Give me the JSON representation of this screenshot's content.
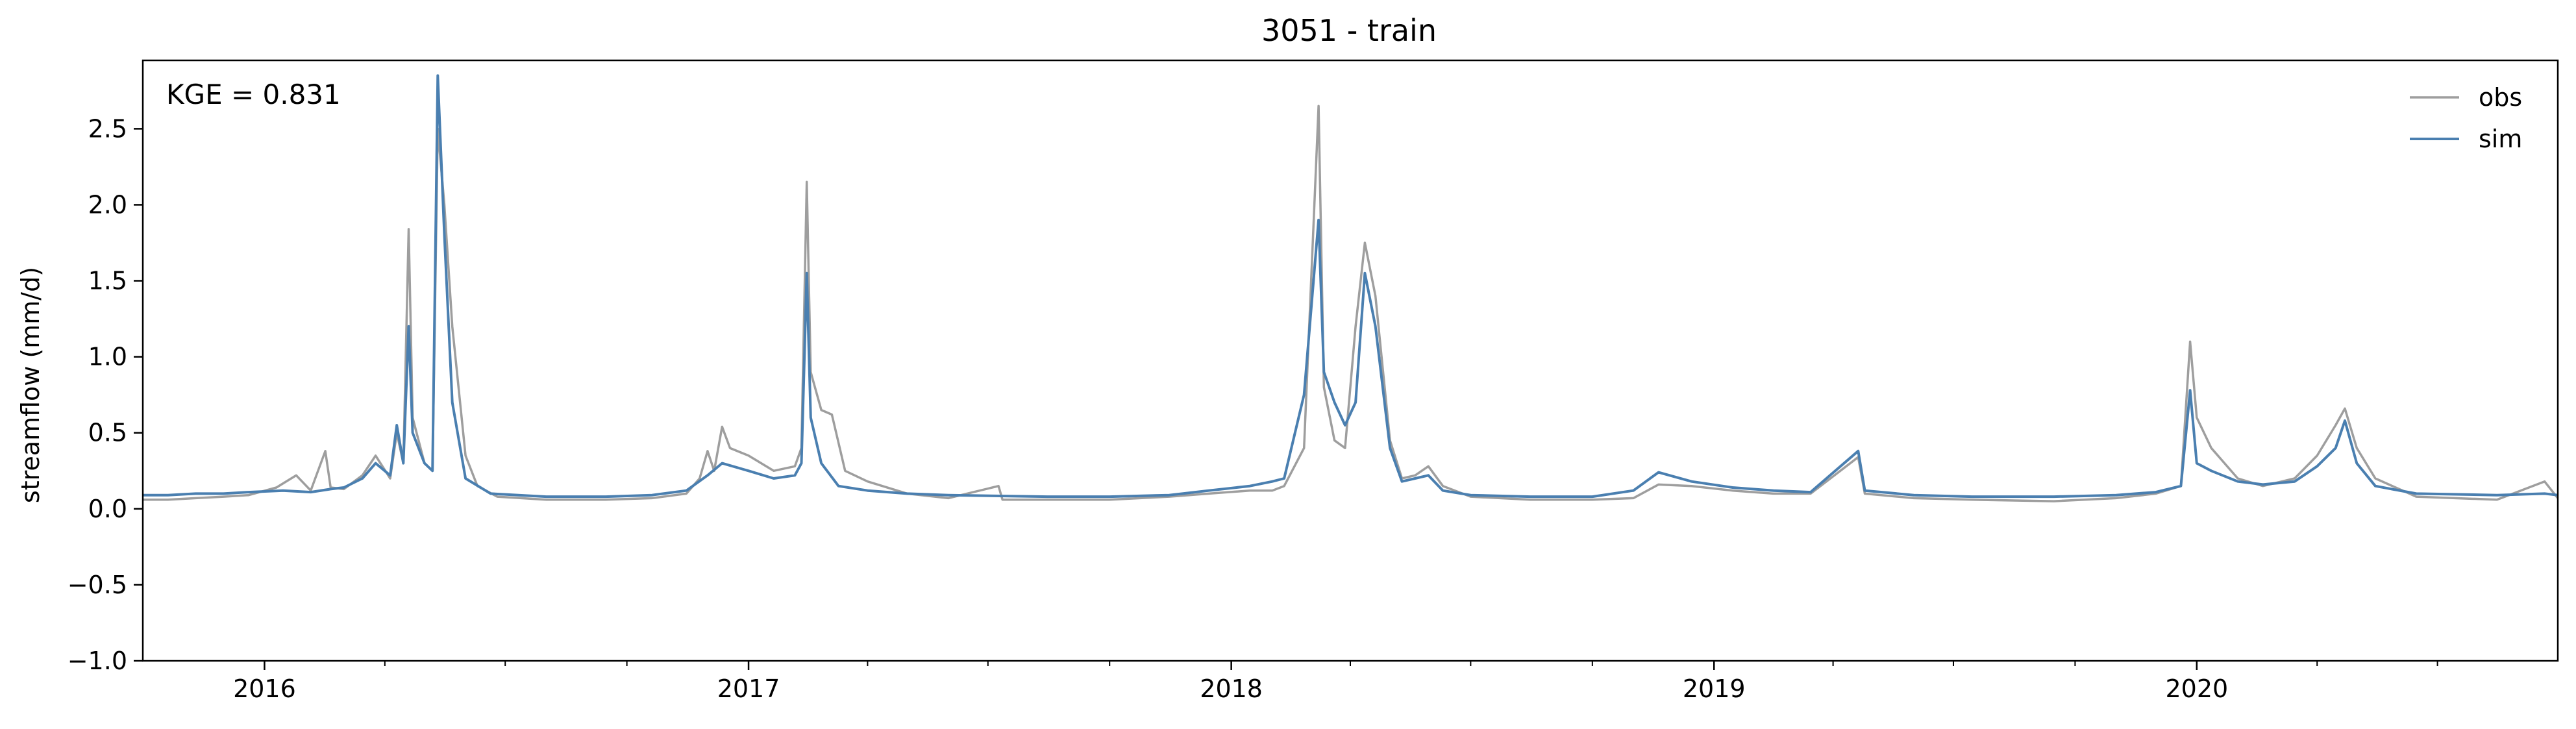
{
  "chart_data": {
    "type": "line",
    "title": "3051 - train",
    "xlabel": "",
    "ylabel": "streamflow (mm/d)",
    "annotation": "KGE = 0.831",
    "x_range": [
      "2015-10-01",
      "2020-09-30"
    ],
    "ylim": [
      -1.0,
      2.95
    ],
    "y_ticks": [
      -1.0,
      -0.5,
      0.0,
      0.5,
      1.0,
      1.5,
      2.0,
      2.5
    ],
    "y_tick_labels": [
      "−1.0",
      "−0.5",
      "0.0",
      "0.5",
      "1.0",
      "1.5",
      "2.0",
      "2.5"
    ],
    "x_tick_labels": [
      {
        "date": "2016-01-01",
        "label": "2016"
      },
      {
        "date": "2017-01-01",
        "label": "2017"
      },
      {
        "date": "2018-01-01",
        "label": "2018"
      },
      {
        "date": "2019-01-01",
        "label": "2019"
      },
      {
        "date": "2020-01-01",
        "label": "2020"
      }
    ],
    "grid": false,
    "legend_position": "top-right",
    "series": [
      {
        "name": "obs",
        "color": "#9e9e9e",
        "points": [
          [
            "2015-10-01",
            0.06
          ],
          [
            "2015-10-20",
            0.06
          ],
          [
            "2015-11-10",
            0.07
          ],
          [
            "2015-12-01",
            0.08
          ],
          [
            "2015-12-20",
            0.09
          ],
          [
            "2016-01-10",
            0.14
          ],
          [
            "2016-01-25",
            0.22
          ],
          [
            "2016-02-05",
            0.12
          ],
          [
            "2016-02-16",
            0.38
          ],
          [
            "2016-02-20",
            0.14
          ],
          [
            "2016-03-01",
            0.13
          ],
          [
            "2016-03-15",
            0.22
          ],
          [
            "2016-03-25",
            0.35
          ],
          [
            "2016-04-05",
            0.2
          ],
          [
            "2016-04-10",
            0.5
          ],
          [
            "2016-04-15",
            0.3
          ],
          [
            "2016-04-19",
            1.84
          ],
          [
            "2016-04-22",
            0.6
          ],
          [
            "2016-05-01",
            0.3
          ],
          [
            "2016-05-07",
            0.25
          ],
          [
            "2016-05-11",
            2.5
          ],
          [
            "2016-05-16",
            2.0
          ],
          [
            "2016-05-22",
            1.2
          ],
          [
            "2016-06-01",
            0.35
          ],
          [
            "2016-06-10",
            0.15
          ],
          [
            "2016-06-25",
            0.08
          ],
          [
            "2016-08-01",
            0.06
          ],
          [
            "2016-09-15",
            0.06
          ],
          [
            "2016-10-20",
            0.07
          ],
          [
            "2016-11-15",
            0.1
          ],
          [
            "2016-11-25",
            0.2
          ],
          [
            "2016-12-01",
            0.38
          ],
          [
            "2016-12-06",
            0.25
          ],
          [
            "2016-12-12",
            0.54
          ],
          [
            "2016-12-18",
            0.4
          ],
          [
            "2017-01-01",
            0.35
          ],
          [
            "2017-01-20",
            0.25
          ],
          [
            "2017-02-05",
            0.28
          ],
          [
            "2017-02-10",
            0.4
          ],
          [
            "2017-02-14",
            2.15
          ],
          [
            "2017-02-17",
            0.9
          ],
          [
            "2017-02-25",
            0.65
          ],
          [
            "2017-03-05",
            0.62
          ],
          [
            "2017-03-15",
            0.25
          ],
          [
            "2017-04-01",
            0.18
          ],
          [
            "2017-05-01",
            0.1
          ],
          [
            "2017-06-01",
            0.07
          ],
          [
            "2017-07-09",
            0.15
          ],
          [
            "2017-07-12",
            0.06
          ],
          [
            "2017-08-15",
            0.06
          ],
          [
            "2017-10-01",
            0.06
          ],
          [
            "2017-11-15",
            0.08
          ],
          [
            "2017-12-15",
            0.1
          ],
          [
            "2018-01-15",
            0.12
          ],
          [
            "2018-02-01",
            0.12
          ],
          [
            "2018-02-10",
            0.15
          ],
          [
            "2018-02-25",
            0.4
          ],
          [
            "2018-03-08",
            2.65
          ],
          [
            "2018-03-12",
            0.8
          ],
          [
            "2018-03-20",
            0.45
          ],
          [
            "2018-03-28",
            0.4
          ],
          [
            "2018-04-05",
            1.2
          ],
          [
            "2018-04-12",
            1.75
          ],
          [
            "2018-04-20",
            1.4
          ],
          [
            "2018-05-01",
            0.45
          ],
          [
            "2018-05-10",
            0.2
          ],
          [
            "2018-05-20",
            0.22
          ],
          [
            "2018-05-30",
            0.28
          ],
          [
            "2018-06-10",
            0.15
          ],
          [
            "2018-07-01",
            0.08
          ],
          [
            "2018-08-15",
            0.06
          ],
          [
            "2018-10-01",
            0.06
          ],
          [
            "2018-11-01",
            0.07
          ],
          [
            "2018-11-20",
            0.16
          ],
          [
            "2018-12-15",
            0.15
          ],
          [
            "2019-01-15",
            0.12
          ],
          [
            "2019-02-15",
            0.1
          ],
          [
            "2019-03-15",
            0.1
          ],
          [
            "2019-04-20",
            0.34
          ],
          [
            "2019-04-25",
            0.1
          ],
          [
            "2019-06-01",
            0.07
          ],
          [
            "2019-07-15",
            0.06
          ],
          [
            "2019-09-15",
            0.05
          ],
          [
            "2019-11-01",
            0.07
          ],
          [
            "2019-12-01",
            0.1
          ],
          [
            "2019-12-20",
            0.15
          ],
          [
            "2019-12-27",
            1.1
          ],
          [
            "2020-01-01",
            0.6
          ],
          [
            "2020-01-12",
            0.4
          ],
          [
            "2020-02-01",
            0.2
          ],
          [
            "2020-02-20",
            0.15
          ],
          [
            "2020-03-15",
            0.2
          ],
          [
            "2020-04-01",
            0.35
          ],
          [
            "2020-04-15",
            0.55
          ],
          [
            "2020-04-22",
            0.66
          ],
          [
            "2020-05-01",
            0.4
          ],
          [
            "2020-05-15",
            0.2
          ],
          [
            "2020-06-15",
            0.08
          ],
          [
            "2020-08-15",
            0.06
          ],
          [
            "2020-09-20",
            0.18
          ],
          [
            "2020-09-30",
            0.07
          ]
        ]
      },
      {
        "name": "sim",
        "color": "#4a7fb0",
        "points": [
          [
            "2015-10-01",
            0.09
          ],
          [
            "2015-10-20",
            0.09
          ],
          [
            "2015-11-10",
            0.1
          ],
          [
            "2015-12-01",
            0.1
          ],
          [
            "2015-12-20",
            0.11
          ],
          [
            "2016-01-15",
            0.12
          ],
          [
            "2016-02-05",
            0.11
          ],
          [
            "2016-02-20",
            0.13
          ],
          [
            "2016-03-01",
            0.14
          ],
          [
            "2016-03-15",
            0.2
          ],
          [
            "2016-03-25",
            0.3
          ],
          [
            "2016-04-05",
            0.22
          ],
          [
            "2016-04-10",
            0.55
          ],
          [
            "2016-04-15",
            0.3
          ],
          [
            "2016-04-19",
            1.2
          ],
          [
            "2016-04-22",
            0.5
          ],
          [
            "2016-05-01",
            0.3
          ],
          [
            "2016-05-07",
            0.25
          ],
          [
            "2016-05-11",
            2.85
          ],
          [
            "2016-05-16",
            1.8
          ],
          [
            "2016-05-22",
            0.7
          ],
          [
            "2016-06-01",
            0.2
          ],
          [
            "2016-06-20",
            0.1
          ],
          [
            "2016-08-01",
            0.08
          ],
          [
            "2016-09-15",
            0.08
          ],
          [
            "2016-10-20",
            0.09
          ],
          [
            "2016-11-15",
            0.12
          ],
          [
            "2016-12-01",
            0.22
          ],
          [
            "2016-12-12",
            0.3
          ],
          [
            "2017-01-01",
            0.25
          ],
          [
            "2017-01-20",
            0.2
          ],
          [
            "2017-02-05",
            0.22
          ],
          [
            "2017-02-10",
            0.3
          ],
          [
            "2017-02-14",
            1.55
          ],
          [
            "2017-02-17",
            0.6
          ],
          [
            "2017-02-25",
            0.3
          ],
          [
            "2017-03-10",
            0.15
          ],
          [
            "2017-04-01",
            0.12
          ],
          [
            "2017-05-01",
            0.1
          ],
          [
            "2017-06-01",
            0.09
          ],
          [
            "2017-08-15",
            0.08
          ],
          [
            "2017-10-01",
            0.08
          ],
          [
            "2017-11-15",
            0.09
          ],
          [
            "2017-12-15",
            0.12
          ],
          [
            "2018-01-15",
            0.15
          ],
          [
            "2018-02-01",
            0.18
          ],
          [
            "2018-02-10",
            0.2
          ],
          [
            "2018-02-25",
            0.75
          ],
          [
            "2018-03-08",
            1.9
          ],
          [
            "2018-03-12",
            0.9
          ],
          [
            "2018-03-20",
            0.7
          ],
          [
            "2018-03-28",
            0.55
          ],
          [
            "2018-04-05",
            0.7
          ],
          [
            "2018-04-12",
            1.55
          ],
          [
            "2018-04-20",
            1.2
          ],
          [
            "2018-05-01",
            0.4
          ],
          [
            "2018-05-10",
            0.18
          ],
          [
            "2018-05-20",
            0.2
          ],
          [
            "2018-05-30",
            0.22
          ],
          [
            "2018-06-10",
            0.12
          ],
          [
            "2018-07-01",
            0.09
          ],
          [
            "2018-08-15",
            0.08
          ],
          [
            "2018-10-01",
            0.08
          ],
          [
            "2018-11-01",
            0.12
          ],
          [
            "2018-11-20",
            0.24
          ],
          [
            "2018-12-15",
            0.18
          ],
          [
            "2019-01-15",
            0.14
          ],
          [
            "2019-02-15",
            0.12
          ],
          [
            "2019-03-15",
            0.11
          ],
          [
            "2019-04-20",
            0.38
          ],
          [
            "2019-04-25",
            0.12
          ],
          [
            "2019-06-01",
            0.09
          ],
          [
            "2019-07-15",
            0.08
          ],
          [
            "2019-09-15",
            0.08
          ],
          [
            "2019-11-01",
            0.09
          ],
          [
            "2019-12-01",
            0.11
          ],
          [
            "2019-12-20",
            0.15
          ],
          [
            "2019-12-27",
            0.78
          ],
          [
            "2020-01-01",
            0.3
          ],
          [
            "2020-01-12",
            0.25
          ],
          [
            "2020-02-01",
            0.18
          ],
          [
            "2020-02-20",
            0.16
          ],
          [
            "2020-03-15",
            0.18
          ],
          [
            "2020-04-01",
            0.28
          ],
          [
            "2020-04-15",
            0.4
          ],
          [
            "2020-04-22",
            0.58
          ],
          [
            "2020-05-01",
            0.3
          ],
          [
            "2020-05-15",
            0.15
          ],
          [
            "2020-06-15",
            0.1
          ],
          [
            "2020-08-15",
            0.09
          ],
          [
            "2020-09-20",
            0.1
          ],
          [
            "2020-09-30",
            0.09
          ]
        ]
      }
    ]
  }
}
